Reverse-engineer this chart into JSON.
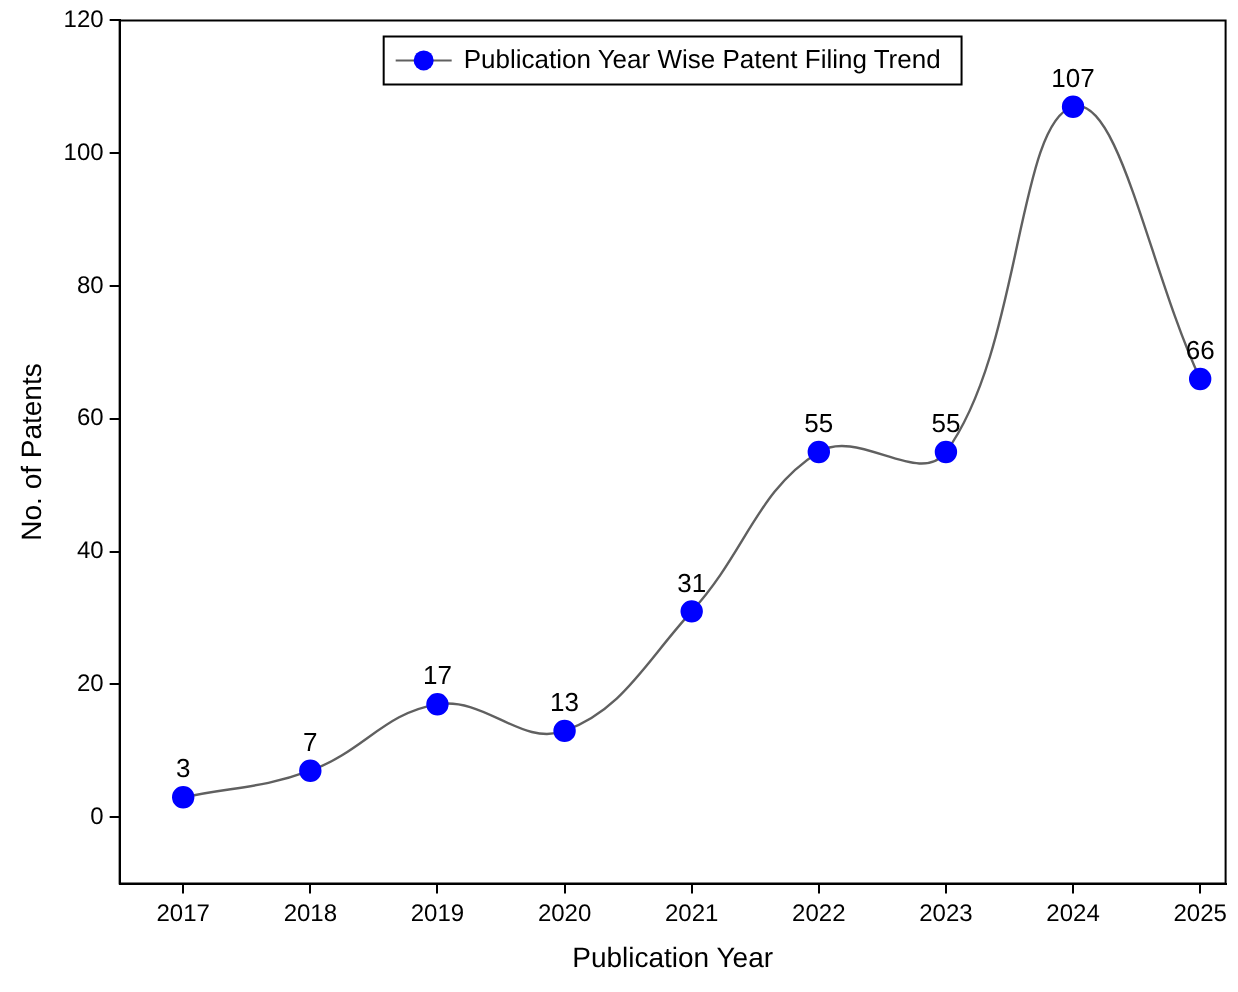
{
  "chart_data": {
    "type": "line",
    "xlabel": "Publication Year",
    "ylabel": "No. of Patents",
    "x": [
      2017,
      2018,
      2019,
      2020,
      2021,
      2022,
      2023,
      2024,
      2025
    ],
    "series": [
      {
        "name": "Publication Year Wise Patent Filing Trend",
        "color": "#0000ff",
        "values": [
          3,
          7,
          17,
          13,
          31,
          55,
          55,
          107,
          66
        ]
      }
    ],
    "xlim": [
      2016.5,
      2025.2
    ],
    "xticks": [
      2017,
      2018,
      2019,
      2020,
      2021,
      2022,
      2023,
      2024,
      2025
    ],
    "ylim": [
      -10,
      120
    ],
    "yticks": [
      0,
      20,
      40,
      60,
      80,
      100,
      120
    ],
    "grid": false,
    "legend": "top",
    "marker": "circle",
    "line_style": "solid",
    "data_labels": true
  }
}
